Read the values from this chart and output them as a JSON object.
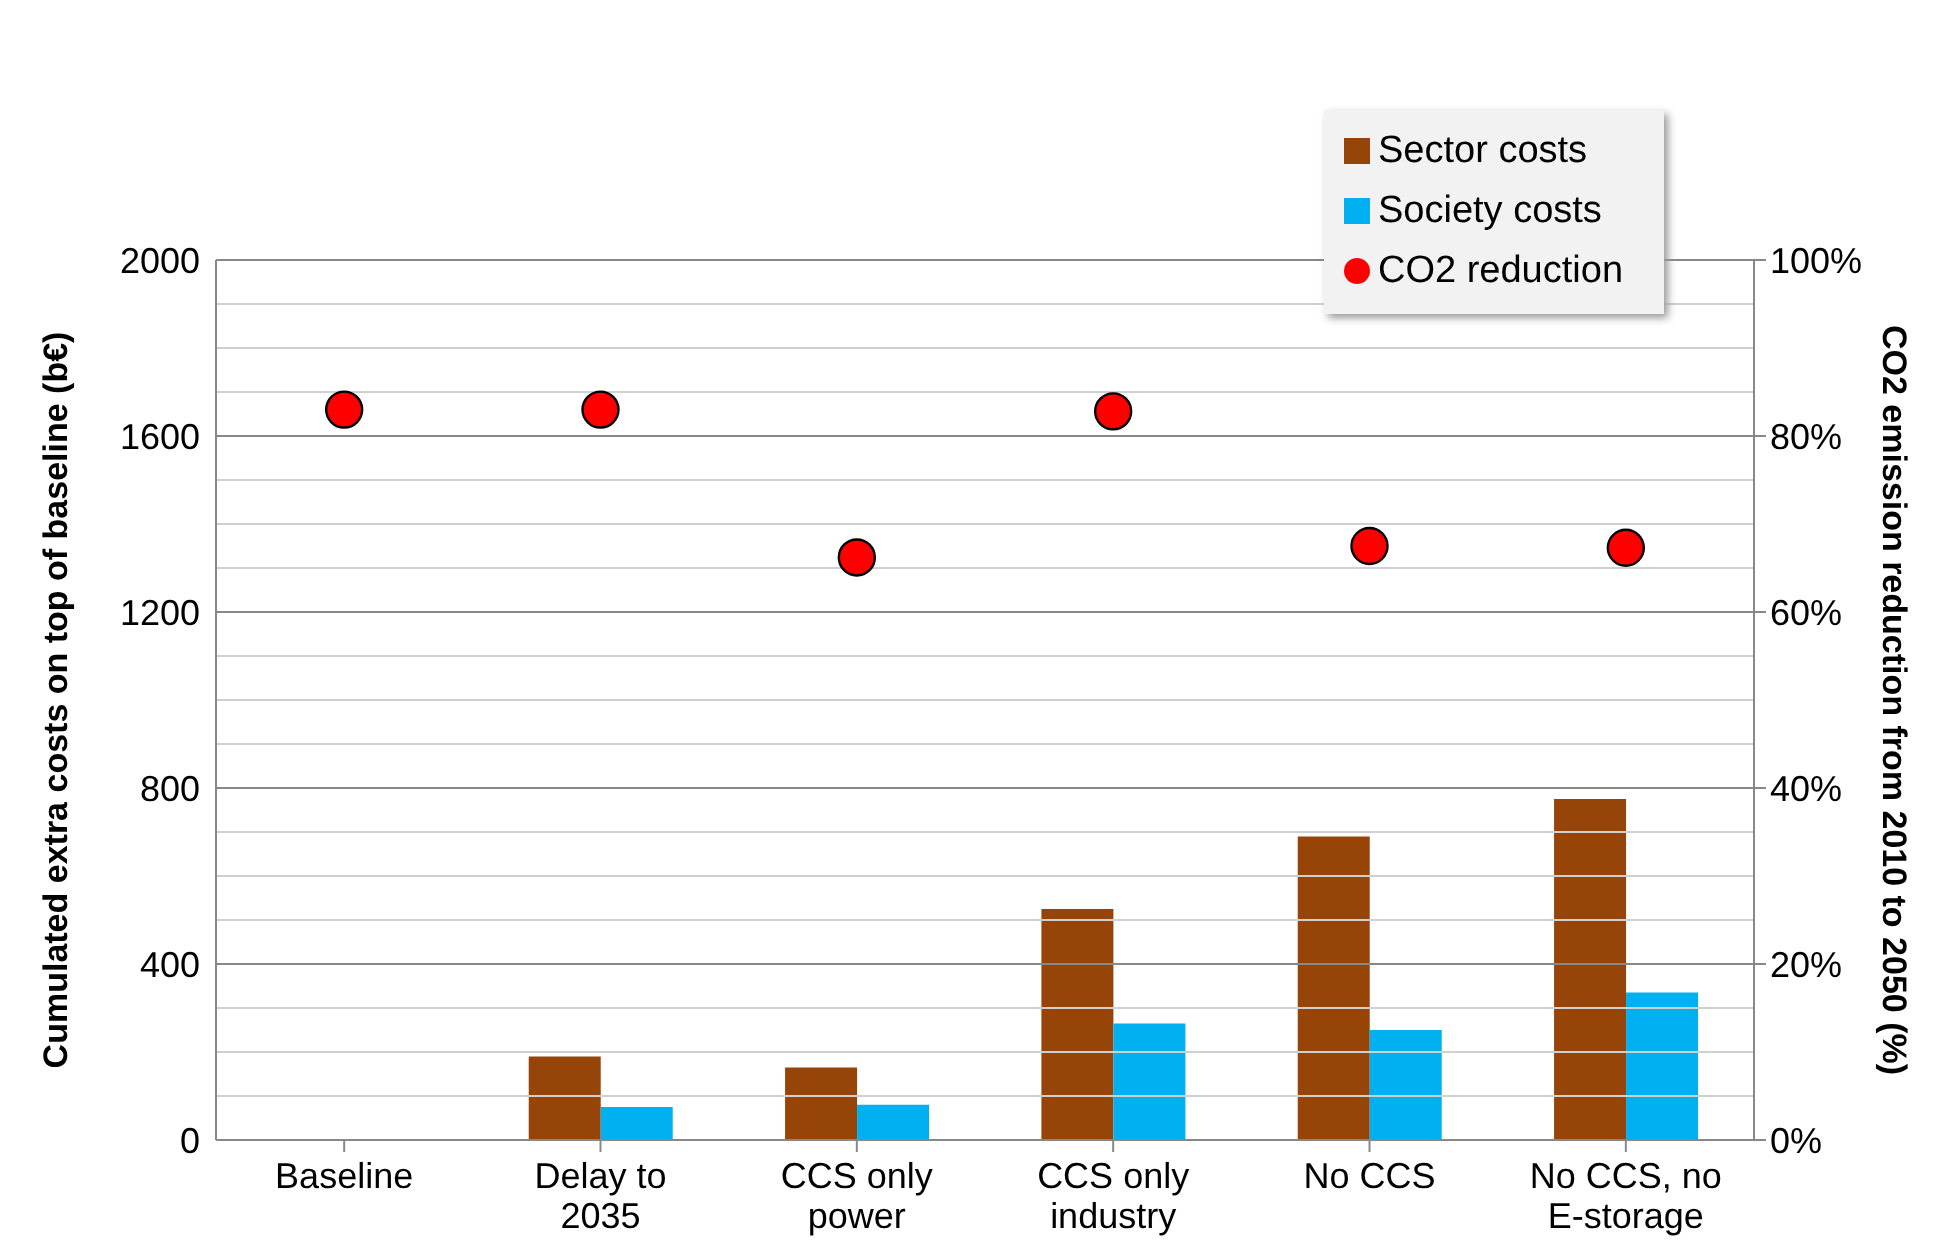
{
  "chart_data": {
    "type": "bar",
    "ylabel": "Cumulated extra costs on top of baseline (b€)",
    "y2label": "CO2 emission reduction from 2010 to 2050 (%)",
    "categories": [
      "Baseline",
      "Delay to 2035",
      "CCS only power",
      "CCS only industry",
      "No CCS",
      "No CCS, no E-storage"
    ],
    "series": [
      {
        "name": "Sector costs",
        "color": "#964408",
        "values": [
          null,
          190,
          165,
          525,
          690,
          775
        ]
      },
      {
        "name": "Society costs",
        "color": "#00b0f0",
        "values": [
          null,
          75,
          80,
          265,
          250,
          335
        ]
      },
      {
        "name": "CO2 reduction",
        "type": "scatter",
        "axis": "y2",
        "color": "#ff0000",
        "values": [
          83,
          83,
          66.2,
          82.8,
          67.5,
          67.3
        ]
      }
    ],
    "ylim": [
      0,
      2000
    ],
    "yticks": [
      0,
      {
        "value": 100,
        "label": null
      },
      {
        "value": 200,
        "label": null
      },
      {
        "value": 300,
        "label": null
      },
      400,
      {
        "value": 500,
        "label": null
      },
      {
        "value": 600,
        "label": null
      },
      {
        "value": 700,
        "label": null
      },
      800,
      {
        "value": 900,
        "label": null
      },
      {
        "value": 1000,
        "label": null
      },
      {
        "value": 1100,
        "label": null
      },
      1200,
      {
        "value": 1300,
        "label": null
      },
      {
        "value": 1400,
        "label": null
      },
      {
        "value": 1500,
        "label": null
      },
      1600,
      {
        "value": 1700,
        "label": null
      },
      {
        "value": 1800,
        "label": null
      },
      {
        "value": 1900,
        "label": null
      },
      2000
    ],
    "y2lim": [
      0,
      100
    ],
    "y2ticks": [
      {
        "value": 0,
        "label": "0%"
      },
      {
        "value": 20,
        "label": "20%"
      },
      {
        "value": 40,
        "label": "40%"
      },
      {
        "value": 60,
        "label": "60%"
      },
      {
        "value": 80,
        "label": "80%"
      },
      {
        "value": 100,
        "label": "100%"
      }
    ],
    "grid": "y",
    "legend": "top right",
    "marker": "circle"
  }
}
